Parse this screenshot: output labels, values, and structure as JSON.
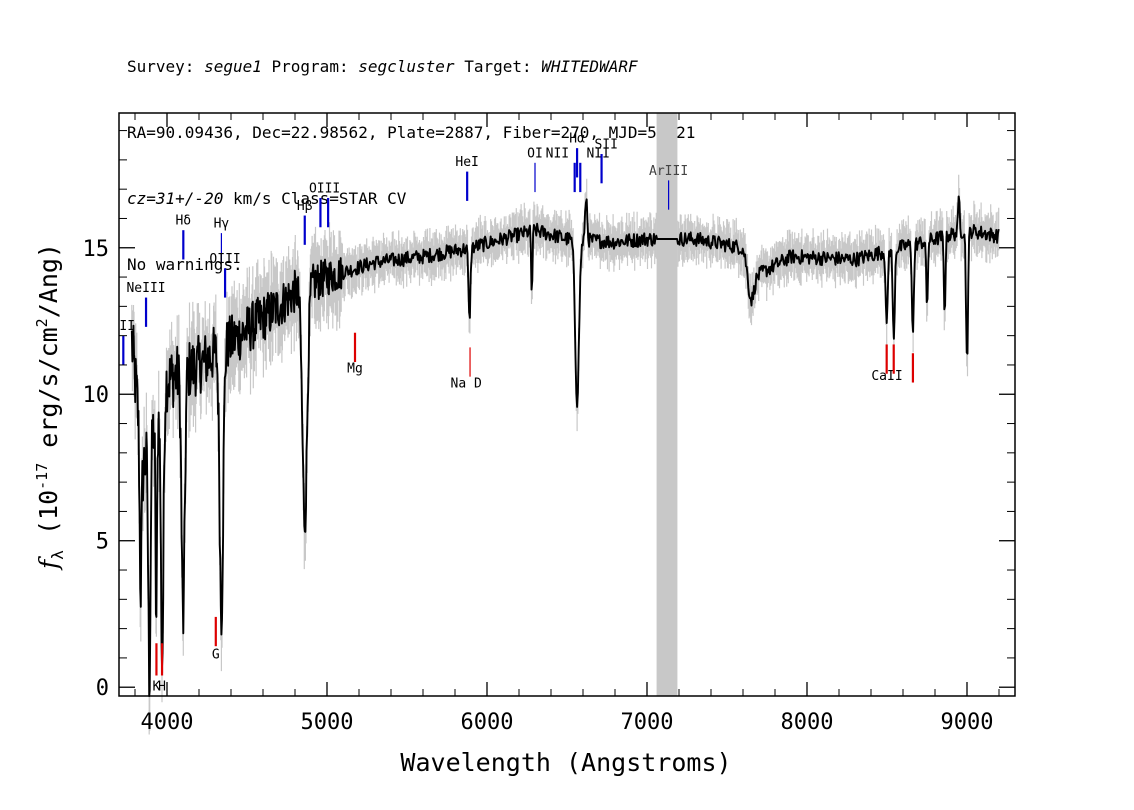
{
  "header": {
    "line1": {
      "survey_label": "Survey:",
      "survey": "segue1",
      "program_label": "Program:",
      "program": "segcluster",
      "target_label": "Target:",
      "target": "WHITEDWARF"
    },
    "line2": "RA=90.09436, Dec=22.98562, Plate=2887, Fiber=270, MJD=54521",
    "line3": {
      "cz": "cz=31+/-20",
      "rest": " km/s Class=STAR CV"
    },
    "line4": "No warnings."
  },
  "chart_data": {
    "type": "line",
    "title": "",
    "xlabel": "Wavelength (Angstroms)",
    "ylabel": "f_λ (10^-17 erg/s/cm^2/Ang)",
    "xlim": [
      3700,
      9300
    ],
    "ylim": [
      -0.3,
      19.6
    ],
    "x_ticks": [
      4000,
      5000,
      6000,
      7000,
      8000,
      9000
    ],
    "y_ticks": [
      0,
      5,
      10,
      15
    ],
    "masked_region": [
      7060,
      7190
    ],
    "colors": {
      "flux": "#000000",
      "error": "#c8c8c8",
      "emission": "#0000cc",
      "absorption": "#dd0000",
      "mask": "#c8c8c8"
    },
    "continuum_anchors": [
      [
        3780,
        11.8
      ],
      [
        3850,
        7.5
      ],
      [
        4000,
        10.5
      ],
      [
        4200,
        11.0
      ],
      [
        4500,
        12.2
      ],
      [
        4700,
        13.0
      ],
      [
        4800,
        13.5
      ],
      [
        5000,
        14.0
      ],
      [
        5300,
        14.5
      ],
      [
        5600,
        14.7
      ],
      [
        5900,
        15.0
      ],
      [
        6300,
        15.6
      ],
      [
        6500,
        15.3
      ],
      [
        6800,
        15.2
      ],
      [
        7000,
        15.3
      ],
      [
        7300,
        15.3
      ],
      [
        7600,
        15.0
      ],
      [
        7700,
        14.1
      ],
      [
        7900,
        14.7
      ],
      [
        8300,
        14.6
      ],
      [
        8500,
        14.9
      ],
      [
        8800,
        15.3
      ],
      [
        9000,
        15.6
      ],
      [
        9200,
        15.4
      ]
    ],
    "absorption_features": [
      {
        "center": 3835,
        "depth": 5.0,
        "width": 6
      },
      {
        "center": 3890,
        "depth": 8.0,
        "width": 7
      },
      {
        "center": 3933,
        "depth": 7.0,
        "width": 5
      },
      {
        "center": 3970,
        "depth": 9.0,
        "width": 8
      },
      {
        "center": 4101,
        "depth": 8.5,
        "width": 10
      },
      {
        "center": 4340,
        "depth": 9.0,
        "width": 11
      },
      {
        "center": 4861,
        "depth": 8.0,
        "width": 15
      },
      {
        "center": 5890,
        "depth": 2.5,
        "width": 6
      },
      {
        "center": 6280,
        "depth": 2.2,
        "width": 4
      },
      {
        "center": 6563,
        "depth": 5.5,
        "width": 12
      },
      {
        "center": 7650,
        "depth": 1.3,
        "width": 20
      },
      {
        "center": 8498,
        "depth": 2.7,
        "width": 6
      },
      {
        "center": 8542,
        "depth": 3.2,
        "width": 6
      },
      {
        "center": 8662,
        "depth": 3.0,
        "width": 6
      },
      {
        "center": 8750,
        "depth": 2.3,
        "width": 5
      },
      {
        "center": 8860,
        "depth": 2.6,
        "width": 5
      },
      {
        "center": 9000,
        "depth": 4.5,
        "width": 6
      }
    ],
    "emission_features": [
      {
        "center": 6620,
        "height": 1.5,
        "width": 6
      },
      {
        "center": 8950,
        "height": 1.2,
        "width": 5
      }
    ],
    "line_labels": [
      {
        "text": "OII",
        "x": 3727,
        "tick_top": 12.0,
        "tick_bottom": 11.0,
        "label_y": 12.05,
        "type": "emission"
      },
      {
        "text": "NeIII",
        "x": 3869,
        "tick_top": 13.3,
        "tick_bottom": 12.3,
        "label_y": 13.35,
        "type": "emission"
      },
      {
        "text": "Hδ",
        "x": 4102,
        "tick_top": 15.6,
        "tick_bottom": 14.6,
        "label_y": 15.65,
        "type": "emission"
      },
      {
        "text": "Hγ",
        "x": 4340,
        "tick_top": 15.5,
        "tick_bottom": 14.5,
        "label_y": 15.55,
        "type": "emission",
        "thin": true
      },
      {
        "text": "OIII",
        "x": 4363,
        "tick_top": 14.3,
        "tick_bottom": 13.3,
        "label_y": 14.35,
        "type": "emission"
      },
      {
        "text": "Hβ",
        "x": 4861,
        "tick_top": 16.1,
        "tick_bottom": 15.1,
        "label_y": 16.15,
        "type": "emission"
      },
      {
        "text": "OIII",
        "x": 4959,
        "tick_top": 16.7,
        "tick_bottom": 15.7,
        "label_y": 16.75,
        "type": "emission",
        "hide_label": true
      },
      {
        "text": "OIII",
        "x": 5007,
        "tick_top": 16.7,
        "tick_bottom": 15.7,
        "label_y": 16.75,
        "type": "emission",
        "label_x": 4985
      },
      {
        "text": "HeI",
        "x": 5876,
        "tick_top": 17.6,
        "tick_bottom": 16.6,
        "label_y": 17.65,
        "type": "emission"
      },
      {
        "text": "OI",
        "x": 6300,
        "tick_top": 17.9,
        "tick_bottom": 16.9,
        "label_y": 17.95,
        "type": "emission",
        "thin": true
      },
      {
        "text": "NII",
        "x": 6548,
        "tick_top": 17.9,
        "tick_bottom": 16.9,
        "label_y": 17.95,
        "type": "emission",
        "label_x": 6440
      },
      {
        "text": "Hα",
        "x": 6563,
        "tick_top": 18.4,
        "tick_bottom": 17.4,
        "label_y": 18.45,
        "type": "emission"
      },
      {
        "text": "NII",
        "x": 6583,
        "tick_top": 17.9,
        "tick_bottom": 16.9,
        "label_y": 17.95,
        "type": "emission",
        "hide_label": true
      },
      {
        "text": "SII",
        "x": 6716,
        "tick_top": 18.2,
        "tick_bottom": 17.2,
        "label_y": 18.25,
        "type": "emission",
        "label_x": 6745
      },
      {
        "text": "NII",
        "x": 6731,
        "tick_top": 17.9,
        "tick_bottom": 16.9,
        "label_y": 17.95,
        "type": "emission",
        "label_x": 6695,
        "hide_tick": true
      },
      {
        "text": "ArIII",
        "x": 7135,
        "tick_top": 17.3,
        "tick_bottom": 16.3,
        "label_y": 17.35,
        "type": "emission",
        "thin": true,
        "label_color": "#444444"
      },
      {
        "text": "K",
        "x": 3934,
        "tick_top": 1.5,
        "tick_bottom": 0.4,
        "label_y": -0.25,
        "type": "absorption"
      },
      {
        "text": "H",
        "x": 3969,
        "tick_top": 1.5,
        "tick_bottom": 0.4,
        "label_y": -0.25,
        "type": "absorption"
      },
      {
        "text": "G",
        "x": 4305,
        "tick_top": 2.4,
        "tick_bottom": 1.4,
        "label_y": 0.85,
        "type": "absorption"
      },
      {
        "text": "Mg",
        "x": 5175,
        "tick_top": 12.1,
        "tick_bottom": 11.1,
        "label_y": 10.6,
        "type": "absorption"
      },
      {
        "text": "Na D",
        "x": 5894,
        "tick_top": 11.6,
        "tick_bottom": 10.6,
        "label_y": 10.1,
        "type": "absorption",
        "thin": true,
        "label_x": 5870
      },
      {
        "text": "CaII",
        "x": 8498,
        "tick_top": 11.7,
        "tick_bottom": 10.7,
        "label_y": 10.35,
        "type": "absorption",
        "label_x": 8500
      },
      {
        "text": "CaII",
        "x": 8542,
        "tick_top": 11.7,
        "tick_bottom": 10.7,
        "label_y": 10.35,
        "type": "absorption",
        "hide_label": true
      },
      {
        "text": "CaII",
        "x": 8662,
        "tick_top": 11.4,
        "tick_bottom": 10.4,
        "label_y": 10.35,
        "type": "absorption",
        "hide_label": true
      }
    ],
    "noise": {
      "blue_amplitude": 1.2,
      "red_amplitude": 0.25,
      "error_band": 0.6
    },
    "grid": false,
    "legend": "none"
  }
}
